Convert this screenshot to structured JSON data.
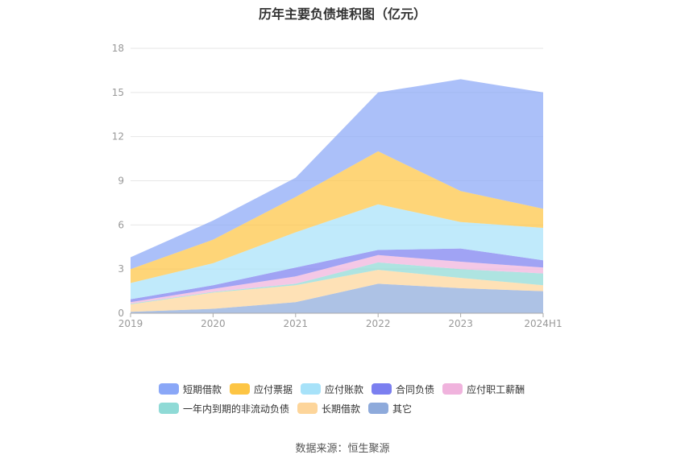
{
  "title": "历年主要负债堆积图（亿元）",
  "source": "数据来源：恒生聚源",
  "chart_data": {
    "type": "area",
    "stacked": true,
    "title": "历年主要负债堆积图（亿元）",
    "categories": [
      "2019",
      "2020",
      "2021",
      "2022",
      "2023",
      "2024H1"
    ],
    "ylim": [
      0,
      18
    ],
    "yticks": [
      "0",
      "3",
      "6",
      "9",
      "12",
      "15",
      "18"
    ],
    "grid": true,
    "legend_position": "bottom",
    "series": [
      {
        "name": "其它",
        "color": "#8eaadb",
        "values": [
          0.1,
          0.3,
          0.75,
          2.0,
          1.7,
          1.5
        ]
      },
      {
        "name": "长期借款",
        "color": "#fdd59a",
        "values": [
          0.5,
          1.1,
          1.15,
          0.95,
          0.7,
          0.4
        ]
      },
      {
        "name": "一年内到期的非流动负债",
        "color": "#8fdad6",
        "values": [
          0.05,
          0.05,
          0.1,
          0.5,
          0.6,
          0.8
        ]
      },
      {
        "name": "应付职工薪酬",
        "color": "#f0b3dd",
        "values": [
          0.1,
          0.2,
          0.5,
          0.5,
          0.5,
          0.4
        ]
      },
      {
        "name": "合同负债",
        "color": "#7b7ff0",
        "values": [
          0.2,
          0.25,
          0.6,
          0.35,
          0.9,
          0.5
        ]
      },
      {
        "name": "应付账款",
        "color": "#a7e2f9",
        "values": [
          1.1,
          1.5,
          2.4,
          3.1,
          1.8,
          2.2
        ]
      },
      {
        "name": "应付票据",
        "color": "#fdc544",
        "values": [
          0.95,
          1.6,
          2.4,
          3.6,
          2.1,
          1.3
        ]
      },
      {
        "name": "短期借款",
        "color": "#8aa7f7",
        "values": [
          0.8,
          1.3,
          1.3,
          4.0,
          7.6,
          7.9
        ]
      }
    ]
  },
  "legend": {
    "rows": [
      [
        {
          "label": "短期借款",
          "color": "#8aa7f7"
        },
        {
          "label": "应付票据",
          "color": "#fdc544"
        },
        {
          "label": "应付账款",
          "color": "#a7e2f9"
        },
        {
          "label": "合同负债",
          "color": "#7b7ff0"
        },
        {
          "label": "应付职工薪酬",
          "color": "#f0b3dd"
        }
      ],
      [
        {
          "label": "一年内到期的非流动负债",
          "color": "#8fdad6"
        },
        {
          "label": "长期借款",
          "color": "#fdd59a"
        },
        {
          "label": "其它",
          "color": "#8eaadb"
        }
      ]
    ]
  }
}
